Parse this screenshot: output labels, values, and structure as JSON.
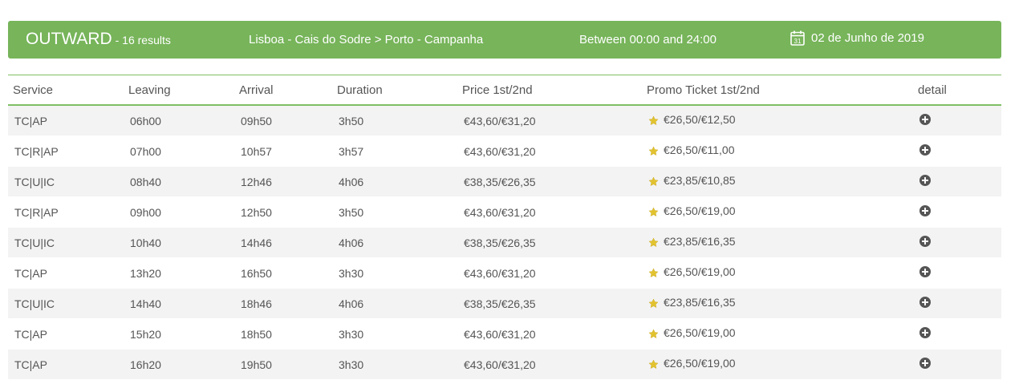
{
  "banner": {
    "title": "OUTWARD",
    "count": " - 16 results",
    "route": "Lisboa - Cais do Sodre > Porto - Campanha",
    "time_range": "Between 00:00 and 24:00",
    "date": "02 de Junho de 2019",
    "calendar_day": "31"
  },
  "columns": [
    "Service",
    "Leaving",
    "Arrival",
    "Duration",
    "Price 1st/2nd",
    "Promo Ticket 1st/2nd",
    "detail"
  ],
  "rows": [
    {
      "service": "TC|AP",
      "leaving": "06h00",
      "arrival": "09h50",
      "duration": "3h50",
      "price": "€43,60/€31,20",
      "promo": "€26,50/€12,50"
    },
    {
      "service": "TC|R|AP",
      "leaving": "07h00",
      "arrival": "10h57",
      "duration": "3h57",
      "price": "€43,60/€31,20",
      "promo": "€26,50/€11,00"
    },
    {
      "service": "TC|U|IC",
      "leaving": "08h40",
      "arrival": "12h46",
      "duration": "4h06",
      "price": "€38,35/€26,35",
      "promo": "€23,85/€10,85"
    },
    {
      "service": "TC|R|AP",
      "leaving": "09h00",
      "arrival": "12h50",
      "duration": "3h50",
      "price": "€43,60/€31,20",
      "promo": "€26,50/€19,00"
    },
    {
      "service": "TC|U|IC",
      "leaving": "10h40",
      "arrival": "14h46",
      "duration": "4h06",
      "price": "€38,35/€26,35",
      "promo": "€23,85/€16,35"
    },
    {
      "service": "TC|AP",
      "leaving": "13h20",
      "arrival": "16h50",
      "duration": "3h30",
      "price": "€43,60/€31,20",
      "promo": "€26,50/€19,00"
    },
    {
      "service": "TC|U|IC",
      "leaving": "14h40",
      "arrival": "18h46",
      "duration": "4h06",
      "price": "€38,35/€26,35",
      "promo": "€23,85/€16,35"
    },
    {
      "service": "TC|AP",
      "leaving": "15h20",
      "arrival": "18h50",
      "duration": "3h30",
      "price": "€43,60/€31,20",
      "promo": "€26,50/€19,00"
    },
    {
      "service": "TC|AP",
      "leaving": "16h20",
      "arrival": "19h50",
      "duration": "3h30",
      "price": "€43,60/€31,20",
      "promo": "€26,50/€19,00"
    }
  ],
  "icons": {
    "promo": "star-icon",
    "detail": "plus-circle-icon",
    "date": "calendar-icon"
  },
  "colors": {
    "banner": "#77b45a",
    "rule": "#7fbf65",
    "star": "#e2c32f",
    "text": "#555555"
  }
}
